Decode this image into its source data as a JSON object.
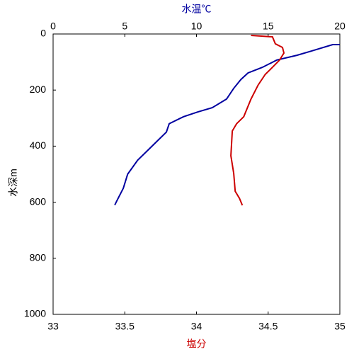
{
  "chart_data": {
    "type": "line",
    "xlabel": "塩分",
    "xlabel_color": "#cc0000",
    "x2label": "水温℃",
    "x2label_color": "#0000a0",
    "ylabel": "水深m",
    "xlim": [
      33,
      35
    ],
    "xticks": [
      33,
      33.5,
      34,
      34.5,
      35
    ],
    "x2lim": [
      0,
      20
    ],
    "x2ticks": [
      0,
      5,
      10,
      15,
      20
    ],
    "ylim": [
      0,
      1000
    ],
    "yticks": [
      0,
      200,
      400,
      600,
      800,
      1000
    ],
    "y_inverted": true,
    "series": [
      {
        "axis": "x2",
        "color": "#0000a0",
        "x": [
          20,
          19.5,
          18,
          17,
          15.6,
          14.6,
          13.6,
          13.1,
          12.6,
          12.1,
          11.1,
          10.1,
          9.1,
          8.1,
          7.9,
          7.3,
          6.7,
          5.9,
          5.2,
          4.9,
          4.5,
          4.3
        ],
        "y": [
          38,
          38,
          61,
          76,
          93,
          119,
          139,
          162,
          194,
          232,
          263,
          278,
          295,
          320,
          350,
          380,
          410,
          450,
          500,
          550,
          590,
          610
        ]
      },
      {
        "axis": "x",
        "color": "#cc0000",
        "x": [
          34.38,
          34.53,
          34.55,
          34.6,
          34.61,
          34.58,
          34.53,
          34.48,
          34.43,
          34.38,
          34.33,
          34.28,
          34.25,
          34.24,
          34.26,
          34.27,
          34.3,
          34.32
        ],
        "y": [
          5,
          10,
          35,
          48,
          68,
          93,
          119,
          144,
          182,
          232,
          295,
          320,
          346,
          434,
          497,
          561,
          586,
          611
        ]
      }
    ]
  }
}
